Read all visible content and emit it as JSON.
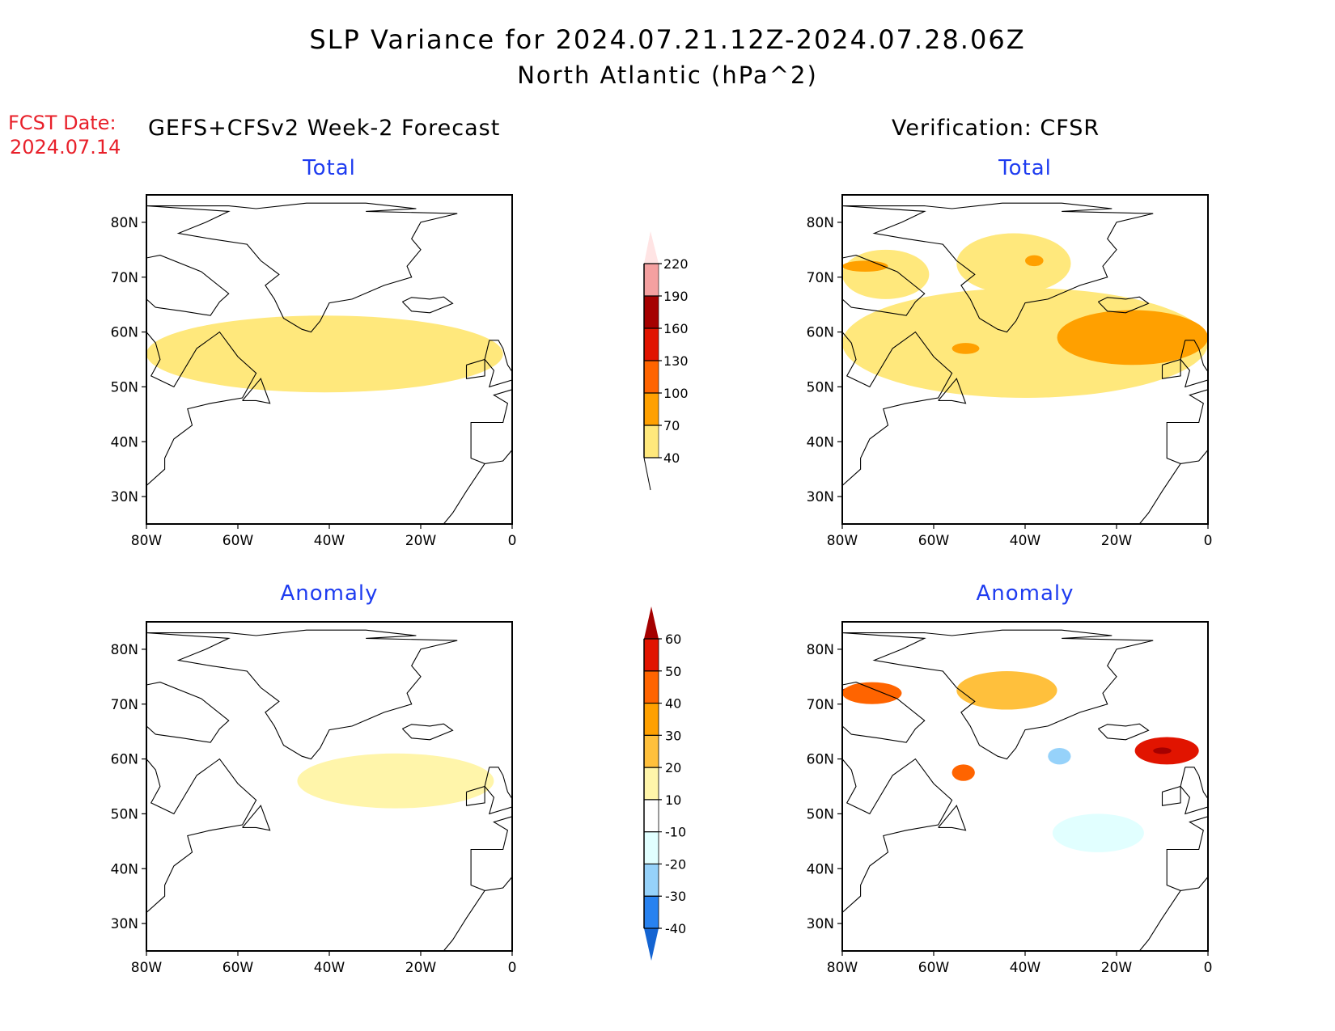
{
  "header": {
    "title": "SLP Variance for 2024.07.21.12Z-2024.07.28.06Z",
    "subtitle": "North Atlantic (hPa^2)",
    "fcst_date_label": "FCST Date:",
    "fcst_date": "2024.07.14",
    "forecast_heading": "GEFS+CFSv2 Week-2 Forecast",
    "verification_heading": "Verification: CFSR"
  },
  "colors": {
    "panel_title": "#1e3cf0",
    "fcst_date": "#e8202a"
  },
  "chart_data": [
    {
      "type": "heatmap",
      "panel": "forecast-total",
      "title": "Total",
      "xlabel": "",
      "ylabel": "",
      "x_ticks": [
        "80W",
        "60W",
        "40W",
        "20W",
        "0"
      ],
      "y_ticks": [
        "80N",
        "70N",
        "60N",
        "50N",
        "40N",
        "30N"
      ],
      "xlim": [
        -80,
        0
      ],
      "ylim": [
        25,
        85
      ],
      "units": "hPa^2",
      "regions": [
        {
          "level": "40-70",
          "description": "band 50-63N from 80W to 2W",
          "lon_range": [
            -80,
            -2
          ],
          "lat_range": [
            49,
            63
          ]
        }
      ]
    },
    {
      "type": "heatmap",
      "panel": "verification-total",
      "title": "Total",
      "xlabel": "",
      "ylabel": "",
      "x_ticks": [
        "80W",
        "60W",
        "40W",
        "20W",
        "0"
      ],
      "y_ticks": [
        "80N",
        "70N",
        "60N",
        "50N",
        "40N",
        "30N"
      ],
      "xlim": [
        -80,
        0
      ],
      "ylim": [
        25,
        85
      ],
      "units": "hPa^2",
      "regions": [
        {
          "level": "40-70",
          "description": "Baffin Bay",
          "lon_range": [
            -80,
            -61
          ],
          "lat_range": [
            66,
            75
          ]
        },
        {
          "level": "70-100",
          "description": "Baffin Bay max",
          "lon_range": [
            -80,
            -70
          ],
          "lat_range": [
            71,
            73
          ]
        },
        {
          "level": "40-70",
          "description": "Greenland interior",
          "lon_range": [
            -55,
            -30
          ],
          "lat_range": [
            67,
            78
          ]
        },
        {
          "level": "70-100",
          "description": "Greenland max",
          "lon_range": [
            -40,
            -36
          ],
          "lat_range": [
            72,
            74
          ]
        },
        {
          "level": "40-70",
          "description": "Labrador Sea to Iceland-UK band",
          "lon_range": [
            -80,
            0
          ],
          "lat_range": [
            48,
            68
          ]
        },
        {
          "level": "70-100",
          "description": "Labrador Sea max",
          "lon_range": [
            -56,
            -50
          ],
          "lat_range": [
            56,
            58
          ]
        },
        {
          "level": "70-100",
          "description": "Iceland to UK max",
          "lon_range": [
            -33,
            0
          ],
          "lat_range": [
            54,
            64
          ]
        }
      ]
    },
    {
      "type": "heatmap",
      "panel": "forecast-anomaly",
      "title": "Anomaly",
      "xlabel": "",
      "ylabel": "",
      "x_ticks": [
        "80W",
        "60W",
        "40W",
        "20W",
        "0"
      ],
      "y_ticks": [
        "80N",
        "70N",
        "60N",
        "50N",
        "40N",
        "30N"
      ],
      "xlim": [
        -80,
        0
      ],
      "ylim": [
        25,
        85
      ],
      "units": "hPa^2",
      "regions": [
        {
          "level": "10-20",
          "description": "band 51-61N from 47W to 4W",
          "lon_range": [
            -47,
            -4
          ],
          "lat_range": [
            51,
            61
          ]
        }
      ]
    },
    {
      "type": "heatmap",
      "panel": "verification-anomaly",
      "title": "Anomaly",
      "xlabel": "",
      "ylabel": "",
      "x_ticks": [
        "80W",
        "60W",
        "40W",
        "20W",
        "0"
      ],
      "y_ticks": [
        "80N",
        "70N",
        "60N",
        "50N",
        "40N",
        "30N"
      ],
      "xlim": [
        -80,
        0
      ],
      "ylim": [
        25,
        85
      ],
      "units": "hPa^2",
      "regions": [
        {
          "level": ">60",
          "description": "Baffin Bay peak",
          "lon_range": [
            -80,
            -74
          ],
          "lat_range": [
            72,
            73
          ]
        },
        {
          "level": "40-60",
          "description": "Baffin Bay core",
          "lon_range": [
            -80,
            -67
          ],
          "lat_range": [
            70,
            74
          ]
        },
        {
          "level": "20-30",
          "description": "Greenland interior",
          "lon_range": [
            -55,
            -33
          ],
          "lat_range": [
            69,
            76
          ]
        },
        {
          "level": "40-50",
          "description": "Labrador Sea core",
          "lon_range": [
            -56,
            -51
          ],
          "lat_range": [
            56,
            59
          ]
        },
        {
          "level": "50-60",
          "description": "Iceland-UK core",
          "lon_range": [
            -16,
            -2
          ],
          "lat_range": [
            59,
            64
          ]
        },
        {
          "level": ">60",
          "description": "Iceland-UK peak",
          "lon_range": [
            -12,
            -8
          ],
          "lat_range": [
            61,
            62
          ]
        },
        {
          "level": "-20 to -30",
          "description": "south of Greenland",
          "lon_range": [
            -35,
            -30
          ],
          "lat_range": [
            59,
            62
          ]
        },
        {
          "level": "-10 to -20",
          "description": "mid-Atlantic 44-49N",
          "lon_range": [
            -34,
            -14
          ],
          "lat_range": [
            43,
            50
          ]
        }
      ]
    }
  ],
  "colorbars": {
    "total": {
      "levels": [
        "40",
        "70",
        "100",
        "130",
        "160",
        "190",
        "220"
      ],
      "colors": [
        "#ffe87c",
        "#ffa000",
        "#ff6400",
        "#e11400",
        "#a50000",
        "#f4a0a0",
        "#ffe4e4"
      ]
    },
    "anomaly": {
      "levels": [
        "-40",
        "-30",
        "-20",
        "-10",
        "10",
        "20",
        "30",
        "40",
        "50",
        "60"
      ],
      "colors": [
        "#1464d2",
        "#2882f0",
        "#96d2fa",
        "#e1ffff",
        "#ffffff",
        "#fff5aa",
        "#ffc03c",
        "#ffa000",
        "#ff6400",
        "#e11400",
        "#a50000"
      ]
    }
  }
}
